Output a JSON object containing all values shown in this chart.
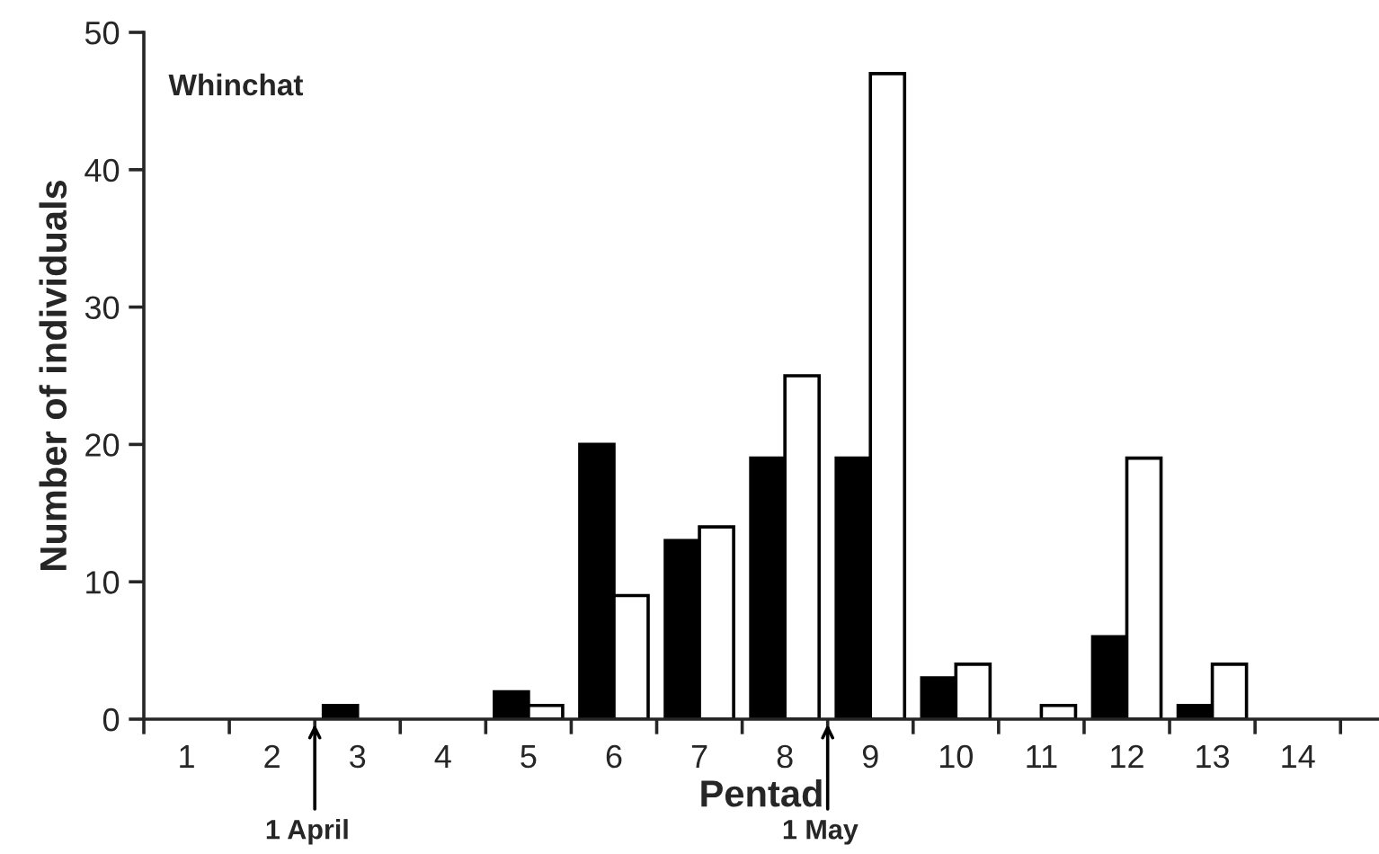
{
  "chart_data": {
    "type": "bar",
    "xlabel": "Pentad",
    "ylabel": "Number of individuals",
    "categories": [
      "1",
      "2",
      "3",
      "4",
      "5",
      "6",
      "7",
      "8",
      "9",
      "10",
      "11",
      "12",
      "13",
      "14"
    ],
    "series": [
      {
        "color": "#000000",
        "values": [
          0,
          0,
          1,
          0,
          2,
          20,
          13,
          19,
          19,
          3,
          0,
          6,
          1,
          0
        ]
      },
      {
        "color": "#ffffff",
        "values": [
          0,
          0,
          0,
          0,
          1,
          9,
          14,
          25,
          47,
          4,
          1,
          19,
          4,
          0
        ]
      }
    ],
    "ylim": [
      0,
      50
    ],
    "yticks": [
      0,
      10,
      20,
      30,
      40,
      50
    ],
    "grid": false,
    "legend": false,
    "annotations": [
      "Whinchat",
      "1 April",
      "1 May"
    ]
  }
}
